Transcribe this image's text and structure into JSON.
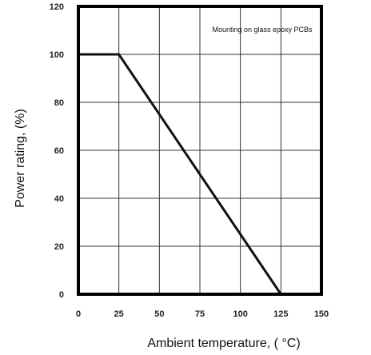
{
  "chart_data": {
    "type": "line",
    "title": "",
    "xlabel": "Ambient temperature, ( °C)",
    "ylabel": "Power rating, (%)",
    "xlim": [
      0,
      150
    ],
    "ylim": [
      0,
      120
    ],
    "xticks": [
      0,
      25,
      50,
      75,
      100,
      125,
      150
    ],
    "yticks": [
      0,
      20,
      40,
      60,
      80,
      100,
      120
    ],
    "grid": true,
    "annotation": "Mounting on glass epoxy PCBs",
    "series": [
      {
        "x": [
          0,
          25,
          125
        ],
        "y": [
          100,
          100,
          0
        ]
      }
    ],
    "colors": {
      "line": "#111111",
      "grid": "#333333",
      "frame": "#000000"
    }
  }
}
